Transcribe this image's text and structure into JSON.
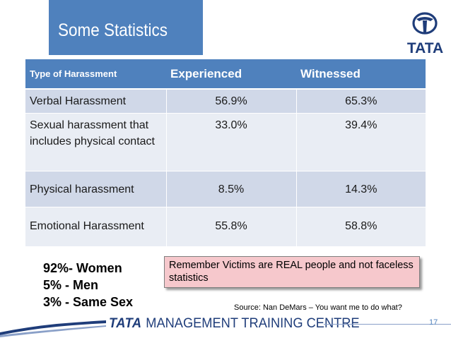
{
  "title": "Some Statistics",
  "logo": {
    "icon": "tata-logo-icon",
    "wordmark": "TATA",
    "color": "#1f3d7a"
  },
  "table": {
    "headers": [
      "Type of Harassment",
      "Experienced",
      "Witnessed"
    ],
    "rows": [
      {
        "type": "Verbal Harassment",
        "experienced": "56.9%",
        "witnessed": "65.3%"
      },
      {
        "type": "Sexual harassment that includes physical contact",
        "experienced": "33.0%",
        "witnessed": "39.4%"
      },
      {
        "type": "Physical harassment",
        "experienced": "8.5%",
        "witnessed": "14.3%"
      },
      {
        "type": "Emotional Harassment",
        "experienced": "55.8%",
        "witnessed": "58.8%"
      }
    ]
  },
  "gender_stats": [
    "92%- Women",
    "5% - Men",
    "3% - Same Sex"
  ],
  "reminder": "Remember Victims are REAL people and not faceless statistics",
  "source": "Source: Nan DeMars – You want me to do what?",
  "footer": {
    "brand": "TATA",
    "name": "MANAGEMENT TRAINING CENTRE"
  },
  "page_number": "17",
  "colors": {
    "header_blue": "#4f81bd",
    "row_odd": "#d0d8e8",
    "row_even": "#e9edf4",
    "callout_pink": "#f6c8cc",
    "brand_navy": "#1f3d7a"
  }
}
